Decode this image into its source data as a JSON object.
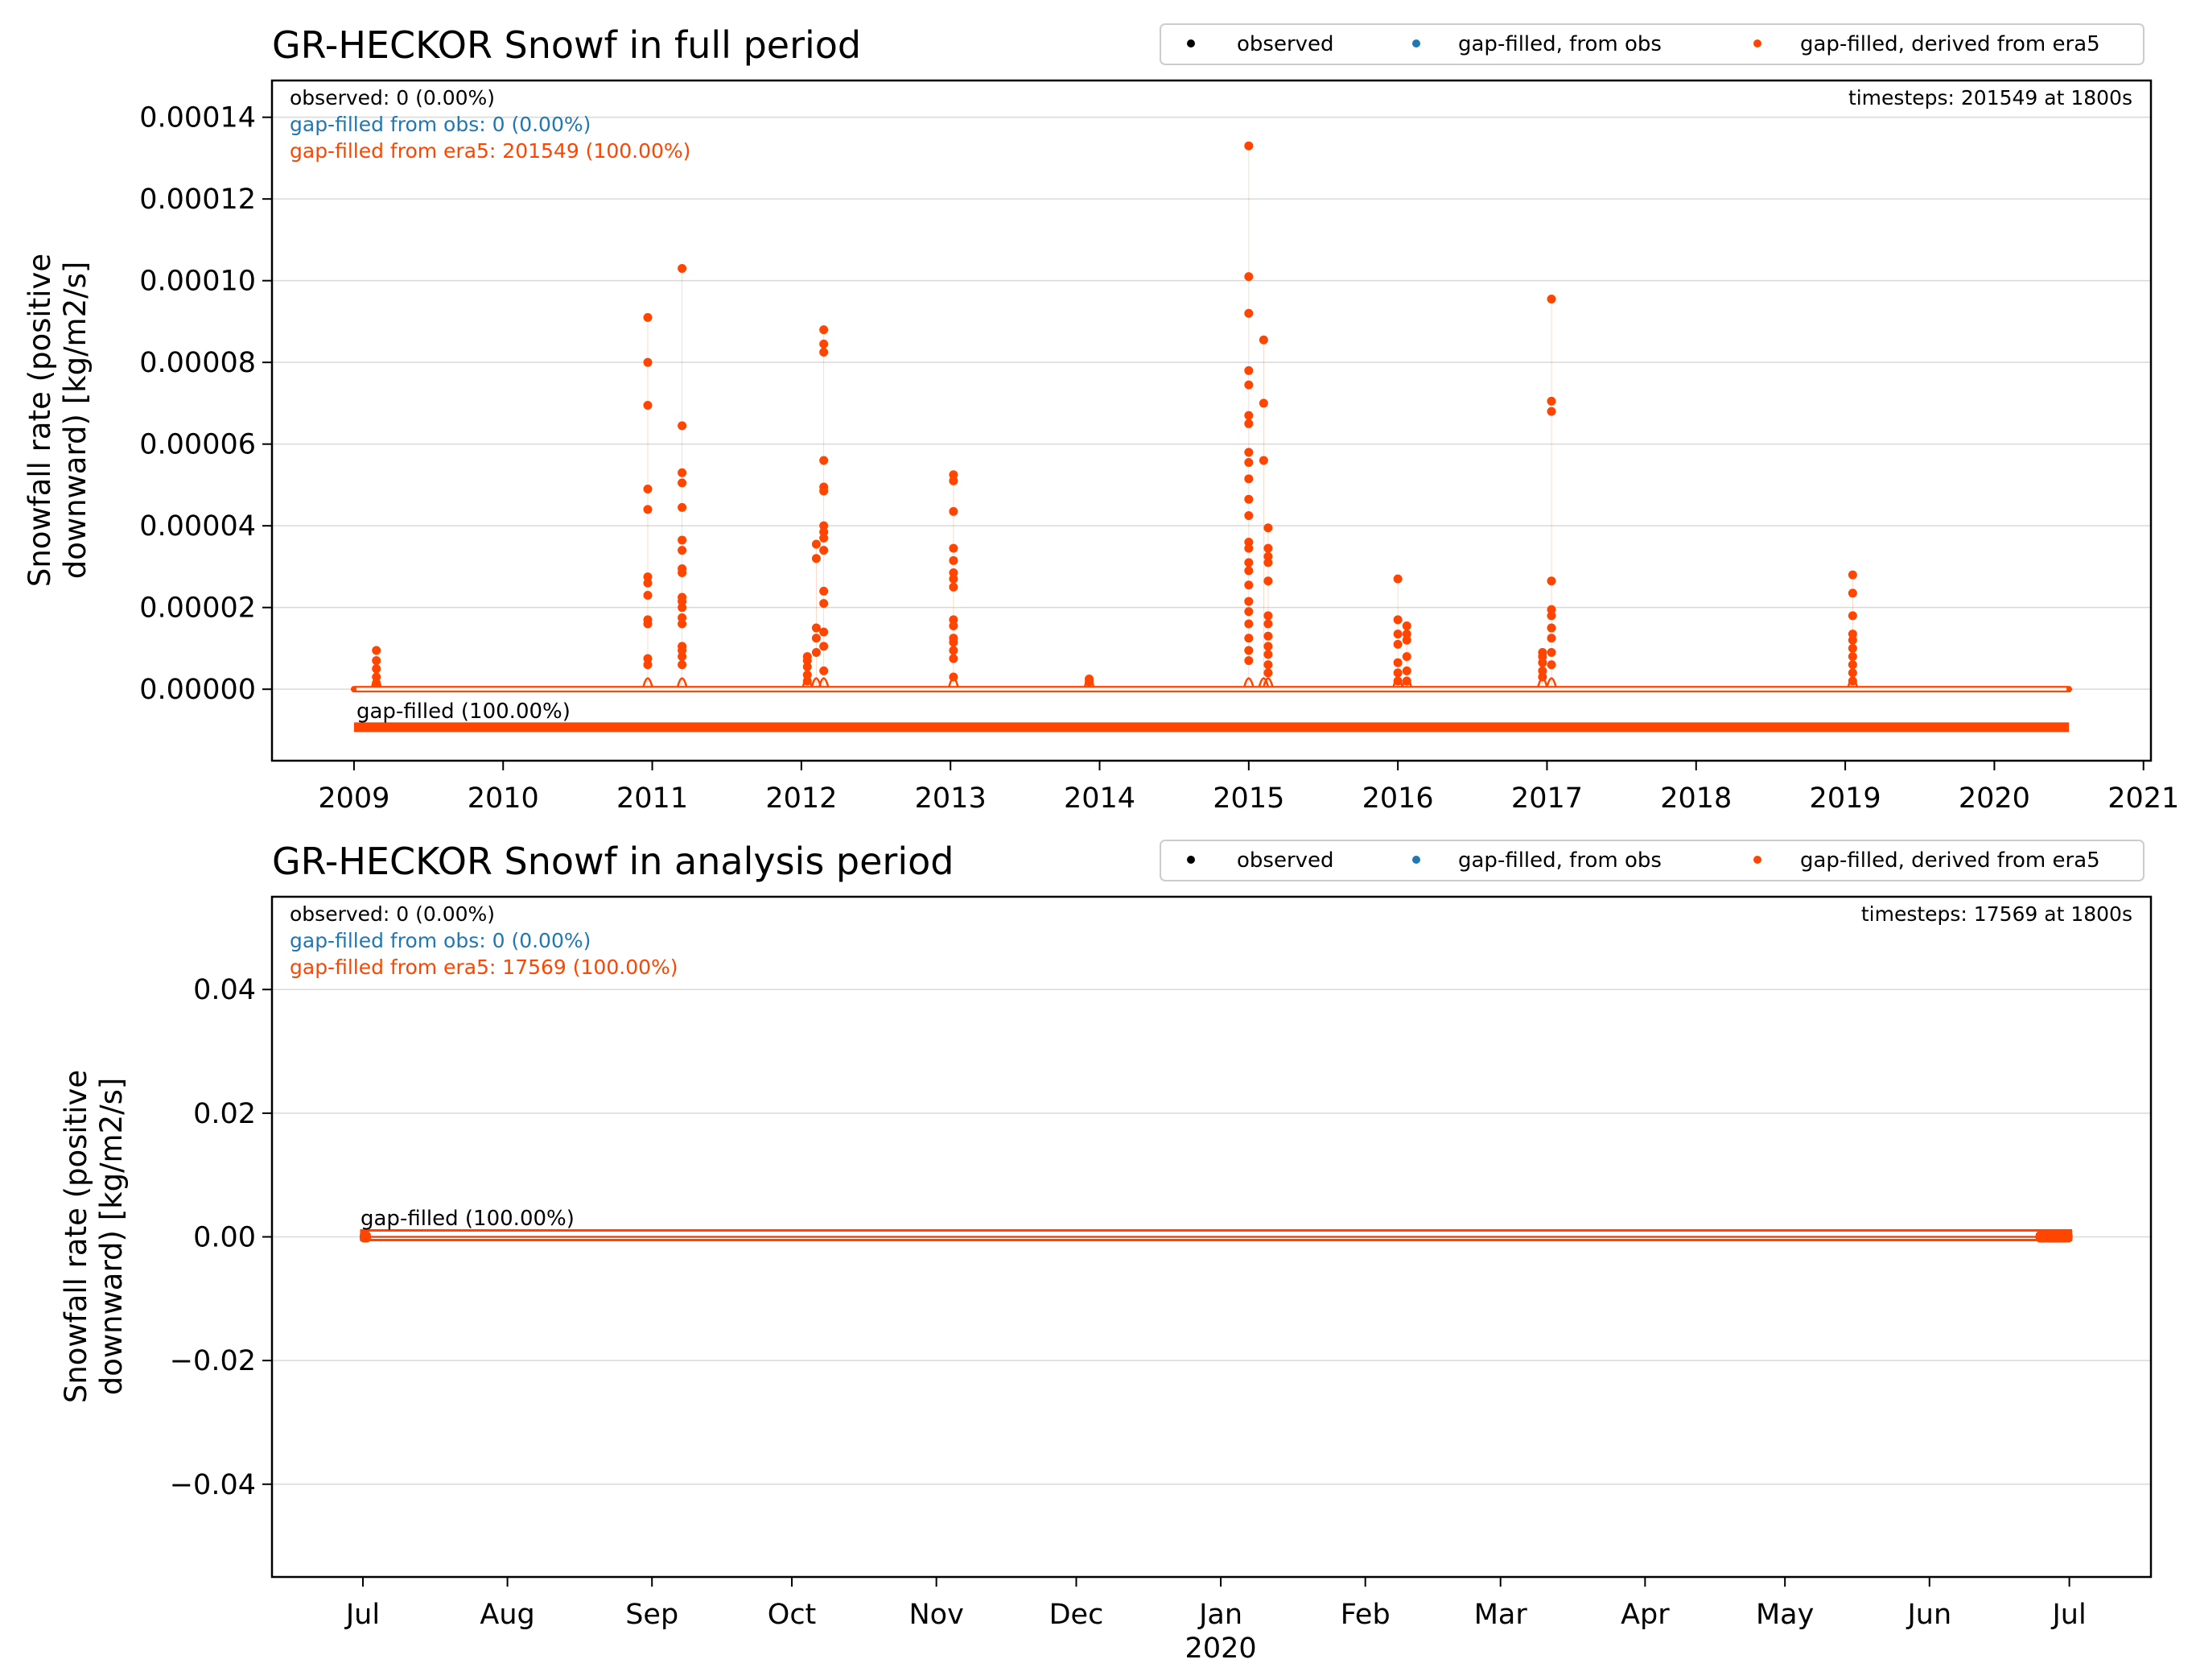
{
  "colors": {
    "observed": "#000000",
    "from_obs": "#1f77b4",
    "era5": "#ff4500",
    "grid": "#d9d9d9",
    "axis": "#000000"
  },
  "chart_data": [
    {
      "type": "scatter",
      "title": "GR-HECKOR Snowf in full period",
      "ylabel_lines": [
        "Snowfall rate (positive",
        "downward) [kg/m2/s]"
      ],
      "xlabel": "",
      "x_ticks": [
        "2009",
        "2010",
        "2011",
        "2012",
        "2013",
        "2014",
        "2015",
        "2016",
        "2017",
        "2018",
        "2019",
        "2020",
        "2021"
      ],
      "y_ticks": [
        "0.00000",
        "0.00002",
        "0.00004",
        "0.00006",
        "0.00008",
        "0.00010",
        "0.00012",
        "0.00014"
      ],
      "ylim": [
        -1.75e-05,
        0.000149
      ],
      "xlim": [
        2008.45,
        2021.05
      ],
      "grid": true,
      "legend": {
        "placement": "top-right",
        "entries": [
          "observed",
          "gap-filled, from obs",
          "gap-filled, derived from era5"
        ]
      },
      "stats": {
        "observed": "observed: 0 (0.00%)",
        "from_obs": "gap-filled from obs: 0 (0.00%)",
        "era5": "gap-filled from era5: 201549 (100.00%)",
        "timesteps": "timesteps: 201549 at 1800s"
      },
      "gapfill_label": "gap-filled (100.00%)",
      "gapfill_bar_y": -9.3e-06,
      "data_range": [
        2009.0,
        2020.5
      ],
      "series": [
        {
          "name": "gap-filled, derived from era5",
          "points": [
            [
              2009.15,
              9.5e-06
            ],
            [
              2009.15,
              7e-06
            ],
            [
              2009.15,
              5e-06
            ],
            [
              2009.15,
              3e-06
            ],
            [
              2009.15,
              1.5e-06
            ],
            [
              2010.97,
              9.1e-05
            ],
            [
              2010.97,
              8e-05
            ],
            [
              2010.97,
              6.95e-05
            ],
            [
              2010.97,
              4.9e-05
            ],
            [
              2010.97,
              4.4e-05
            ],
            [
              2010.97,
              2.75e-05
            ],
            [
              2010.97,
              2.6e-05
            ],
            [
              2010.97,
              2.3e-05
            ],
            [
              2010.97,
              1.7e-05
            ],
            [
              2010.97,
              1.6e-05
            ],
            [
              2010.97,
              7.5e-06
            ],
            [
              2010.97,
              6e-06
            ],
            [
              2011.2,
              0.000103
            ],
            [
              2011.2,
              6.45e-05
            ],
            [
              2011.2,
              5.3e-05
            ],
            [
              2011.2,
              5.05e-05
            ],
            [
              2011.2,
              4.45e-05
            ],
            [
              2011.2,
              3.65e-05
            ],
            [
              2011.2,
              3.4e-05
            ],
            [
              2011.2,
              2.95e-05
            ],
            [
              2011.2,
              2.85e-05
            ],
            [
              2011.2,
              2.25e-05
            ],
            [
              2011.2,
              2.15e-05
            ],
            [
              2011.2,
              2e-05
            ],
            [
              2011.2,
              1.75e-05
            ],
            [
              2011.2,
              1.6e-05
            ],
            [
              2011.2,
              1.05e-05
            ],
            [
              2011.2,
              9.5e-06
            ],
            [
              2011.2,
              8e-06
            ],
            [
              2011.2,
              6e-06
            ],
            [
              2012.04,
              8e-06
            ],
            [
              2012.04,
              7e-06
            ],
            [
              2012.04,
              5.5e-06
            ],
            [
              2012.04,
              3.5e-06
            ],
            [
              2012.04,
              2e-06
            ],
            [
              2012.1,
              3.55e-05
            ],
            [
              2012.1,
              3.2e-05
            ],
            [
              2012.1,
              1.5e-05
            ],
            [
              2012.1,
              1.25e-05
            ],
            [
              2012.1,
              9e-06
            ],
            [
              2012.15,
              8.8e-05
            ],
            [
              2012.15,
              8.45e-05
            ],
            [
              2012.15,
              8.25e-05
            ],
            [
              2012.15,
              5.6e-05
            ],
            [
              2012.15,
              4.95e-05
            ],
            [
              2012.15,
              4.85e-05
            ],
            [
              2012.15,
              4e-05
            ],
            [
              2012.15,
              3.85e-05
            ],
            [
              2012.15,
              3.7e-05
            ],
            [
              2012.15,
              3.4e-05
            ],
            [
              2012.15,
              2.4e-05
            ],
            [
              2012.15,
              2.1e-05
            ],
            [
              2012.15,
              1.4e-05
            ],
            [
              2012.15,
              1.05e-05
            ],
            [
              2012.15,
              4.5e-06
            ],
            [
              2013.02,
              5.25e-05
            ],
            [
              2013.02,
              5.1e-05
            ],
            [
              2013.02,
              4.35e-05
            ],
            [
              2013.02,
              3.45e-05
            ],
            [
              2013.02,
              3.15e-05
            ],
            [
              2013.02,
              2.85e-05
            ],
            [
              2013.02,
              2.7e-05
            ],
            [
              2013.02,
              2.5e-05
            ],
            [
              2013.02,
              1.7e-05
            ],
            [
              2013.02,
              1.55e-05
            ],
            [
              2013.02,
              1.25e-05
            ],
            [
              2013.02,
              1.15e-05
            ],
            [
              2013.02,
              9.5e-06
            ],
            [
              2013.02,
              7.5e-06
            ],
            [
              2013.02,
              3e-06
            ],
            [
              2013.93,
              2.5e-06
            ],
            [
              2013.93,
              1.8e-06
            ],
            [
              2015.0,
              0.000133
            ],
            [
              2015.0,
              0.000101
            ],
            [
              2015.0,
              9.2e-05
            ],
            [
              2015.0,
              7.8e-05
            ],
            [
              2015.0,
              7.45e-05
            ],
            [
              2015.0,
              6.7e-05
            ],
            [
              2015.0,
              6.5e-05
            ],
            [
              2015.0,
              5.8e-05
            ],
            [
              2015.0,
              5.55e-05
            ],
            [
              2015.0,
              5.15e-05
            ],
            [
              2015.0,
              4.65e-05
            ],
            [
              2015.0,
              4.25e-05
            ],
            [
              2015.0,
              3.6e-05
            ],
            [
              2015.0,
              3.45e-05
            ],
            [
              2015.0,
              3.1e-05
            ],
            [
              2015.0,
              2.9e-05
            ],
            [
              2015.0,
              2.55e-05
            ],
            [
              2015.0,
              2.15e-05
            ],
            [
              2015.0,
              1.9e-05
            ],
            [
              2015.0,
              1.6e-05
            ],
            [
              2015.0,
              1.25e-05
            ],
            [
              2015.0,
              9.5e-06
            ],
            [
              2015.0,
              7e-06
            ],
            [
              2015.1,
              8.55e-05
            ],
            [
              2015.1,
              7e-05
            ],
            [
              2015.1,
              5.6e-05
            ],
            [
              2015.13,
              3.95e-05
            ],
            [
              2015.13,
              3.45e-05
            ],
            [
              2015.13,
              3.25e-05
            ],
            [
              2015.13,
              3.1e-05
            ],
            [
              2015.13,
              2.65e-05
            ],
            [
              2015.13,
              1.8e-05
            ],
            [
              2015.13,
              1.6e-05
            ],
            [
              2015.13,
              1.3e-05
            ],
            [
              2015.13,
              1.05e-05
            ],
            [
              2015.13,
              8.5e-06
            ],
            [
              2015.13,
              6e-06
            ],
            [
              2015.13,
              4e-06
            ],
            [
              2016.0,
              2.7e-05
            ],
            [
              2016.0,
              1.7e-05
            ],
            [
              2016.0,
              1.35e-05
            ],
            [
              2016.0,
              1.1e-05
            ],
            [
              2016.0,
              6.5e-06
            ],
            [
              2016.0,
              4e-06
            ],
            [
              2016.0,
              2e-06
            ],
            [
              2016.06,
              1.55e-05
            ],
            [
              2016.06,
              1.35e-05
            ],
            [
              2016.06,
              1.2e-05
            ],
            [
              2016.06,
              8e-06
            ],
            [
              2016.06,
              4.5e-06
            ],
            [
              2016.06,
              2e-06
            ],
            [
              2016.97,
              9e-06
            ],
            [
              2016.97,
              8e-06
            ],
            [
              2016.97,
              6.5e-06
            ],
            [
              2016.97,
              4.5e-06
            ],
            [
              2016.97,
              3e-06
            ],
            [
              2017.03,
              9.55e-05
            ],
            [
              2017.03,
              7.05e-05
            ],
            [
              2017.03,
              6.8e-05
            ],
            [
              2017.03,
              2.65e-05
            ],
            [
              2017.03,
              1.95e-05
            ],
            [
              2017.03,
              1.8e-05
            ],
            [
              2017.03,
              1.5e-05
            ],
            [
              2017.03,
              1.25e-05
            ],
            [
              2017.03,
              9e-06
            ],
            [
              2017.03,
              6e-06
            ],
            [
              2019.05,
              2.8e-05
            ],
            [
              2019.05,
              2.35e-05
            ],
            [
              2019.05,
              1.8e-05
            ],
            [
              2019.05,
              1.35e-05
            ],
            [
              2019.05,
              1.2e-05
            ],
            [
              2019.05,
              1e-05
            ],
            [
              2019.05,
              8e-06
            ],
            [
              2019.05,
              6e-06
            ],
            [
              2019.05,
              4e-06
            ],
            [
              2019.05,
              2e-06
            ]
          ]
        }
      ]
    },
    {
      "type": "scatter",
      "title": "GR-HECKOR Snowf in analysis period",
      "ylabel_lines": [
        "Snowfall rate (positive",
        "downward) [kg/m2/s]"
      ],
      "xlabel": "",
      "x_ticks": [
        "Jul",
        "Aug",
        "Sep",
        "Oct",
        "Nov",
        "Dec",
        "Jan",
        "Feb",
        "Mar",
        "Apr",
        "May",
        "Jun",
        "Jul"
      ],
      "x_ticks_sub": [
        "",
        "",
        "",
        "",
        "",
        "",
        "2020",
        "",
        "",
        "",
        "",
        "",
        ""
      ],
      "y_ticks": [
        "−0.04",
        "−0.02",
        "0.00",
        "0.02",
        "0.04"
      ],
      "ylim": [
        -0.055,
        0.055
      ],
      "xlim": [
        -19.5,
        383.5
      ],
      "grid": true,
      "legend": {
        "placement": "top-right",
        "entries": [
          "observed",
          "gap-filled, from obs",
          "gap-filled, derived from era5"
        ]
      },
      "stats": {
        "observed": "observed: 0 (0.00%)",
        "from_obs": "gap-filled from obs: 0 (0.00%)",
        "era5": "gap-filled from era5: 17569 (100.00%)",
        "timesteps": "timesteps: 17569 at 1800s"
      },
      "gapfill_label": "gap-filled (100.00%)",
      "x_day_ticks": [
        0,
        31,
        62,
        92,
        123,
        153,
        184,
        215,
        244,
        275,
        305,
        336,
        366
      ],
      "data_range": [
        0,
        366
      ],
      "series": [
        {
          "name": "gap-filled, derived from era5",
          "constant_value": 0.0
        }
      ]
    }
  ]
}
